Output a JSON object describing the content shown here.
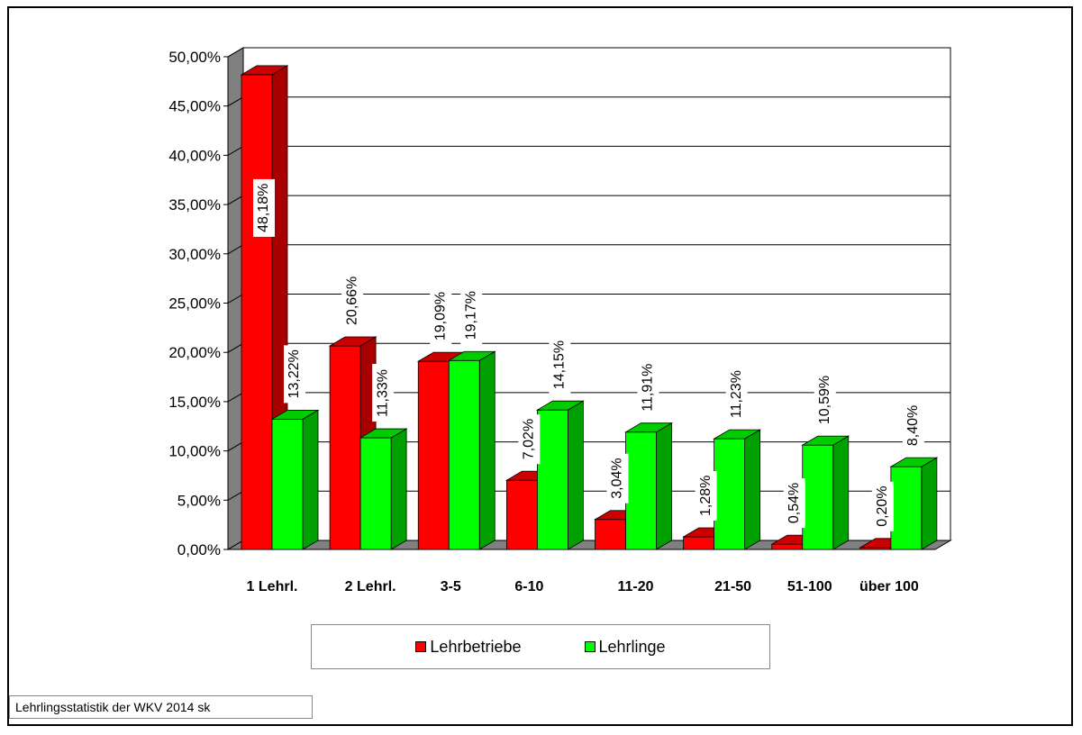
{
  "colors": {
    "series1_front": "#ff0000",
    "series1_side": "#a80000",
    "series1_top": "#cc0000",
    "series2_front": "#00ff00",
    "series2_side": "#00a000",
    "series2_top": "#00cc00",
    "wall": "#808080"
  },
  "chart_data": {
    "type": "bar",
    "title": "",
    "xlabel": "",
    "ylabel": "",
    "ylim": [
      0,
      50
    ],
    "y_ticks": [
      "0,00%",
      "5,00%",
      "10,00%",
      "15,00%",
      "20,00%",
      "25,00%",
      "30,00%",
      "35,00%",
      "40,00%",
      "45,00%",
      "50,00%"
    ],
    "categories": [
      "1 Lehrl.",
      "2 Lehrl.",
      "3-5",
      "6-10",
      "11-20",
      "21-50",
      "51-100",
      "über 100"
    ],
    "series": [
      {
        "name": "Lehrbetriebe",
        "values": [
          48.18,
          20.66,
          19.09,
          7.02,
          3.04,
          1.28,
          0.54,
          0.2
        ],
        "labels": [
          "48,18%",
          "20,66%",
          "19,09%",
          "7,02%",
          "3,04%",
          "1,28%",
          "0,54%",
          "0,20%"
        ]
      },
      {
        "name": "Lehrlinge",
        "values": [
          13.22,
          11.33,
          19.17,
          14.15,
          11.91,
          11.23,
          10.59,
          8.4
        ],
        "labels": [
          "13,22%",
          "11,33%",
          "19,17%",
          "14,15%",
          "11,91%",
          "11,23%",
          "10,59%",
          "8,40%"
        ]
      }
    ],
    "grid": true,
    "three_d": true,
    "legend_position": "bottom"
  },
  "legend": {
    "item1": "Lehrbetriebe",
    "item2": "Lehrlinge"
  },
  "footnote": "Lehrlingsstatistik der WKV 2014  sk"
}
